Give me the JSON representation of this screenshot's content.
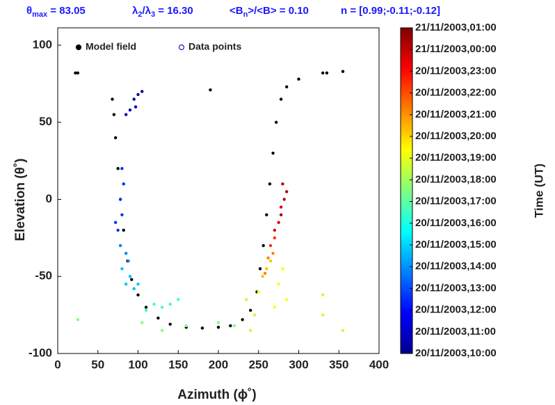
{
  "chart_data": {
    "type": "scatter",
    "annotations": [
      [
        "θ",
        "max",
        " = 83.05"
      ],
      [
        "λ",
        "2",
        "/λ",
        "3",
        " = 16.30"
      ],
      [
        "<B",
        "n",
        ">/<B> = 0.10"
      ],
      [
        "n = [0.99;-0.11;-0.12]"
      ]
    ],
    "xlabel": "Azimuth (ϕ˚)",
    "ylabel": "Elevation (θ˚)",
    "xlim": [
      0,
      400
    ],
    "ylim": [
      -100,
      100
    ],
    "xticks": [
      0,
      50,
      100,
      150,
      200,
      250,
      300,
      350,
      400
    ],
    "yticks": [
      -100,
      -50,
      0,
      50,
      100
    ],
    "legend": "upper left",
    "series": [
      {
        "name": "Model field",
        "color": "#000000",
        "x": [
          68,
          70,
          72,
          75,
          78,
          82,
          87,
          92,
          100,
          110,
          125,
          140,
          160,
          180,
          200,
          215,
          230,
          240,
          248,
          252,
          256,
          260,
          264,
          268,
          272,
          278,
          285,
          300,
          330,
          355,
          25,
          22,
          335,
          190
        ],
        "values": [
          65,
          55,
          40,
          20,
          0,
          -20,
          -40,
          -52,
          -62,
          -70,
          -77,
          -81,
          -83,
          -83.5,
          -83,
          -82,
          -78,
          -72,
          -60,
          -45,
          -30,
          -10,
          10,
          30,
          50,
          65,
          73,
          78,
          82,
          83,
          82,
          82,
          82,
          71
        ]
      },
      {
        "name": "Data points",
        "color": "#1a1ac8",
        "x": [
          95,
          100,
          105,
          90,
          85,
          97,
          80,
          82,
          78,
          80,
          75,
          72,
          78,
          85,
          88,
          80,
          85,
          90,
          95,
          100,
          120,
          130,
          140,
          150,
          110,
          105,
          130,
          160,
          200,
          220,
          25,
          235,
          245,
          240,
          355,
          330,
          330,
          250,
          275,
          280,
          285,
          270,
          255,
          260,
          265,
          262,
          268,
          258,
          265,
          270,
          275,
          278,
          270,
          280,
          282,
          285,
          278
        ],
        "values": [
          65,
          68,
          70,
          58,
          55,
          60,
          20,
          10,
          0,
          -10,
          -20,
          -15,
          -30,
          -35,
          -40,
          -45,
          -55,
          -50,
          -58,
          -55,
          -68,
          -70,
          -68,
          -65,
          -72,
          -80,
          -85,
          -82,
          -80,
          -82,
          -78,
          -65,
          -75,
          -85,
          -85,
          -62,
          -75,
          -60,
          -55,
          -45,
          -65,
          -70,
          -50,
          -45,
          -40,
          -38,
          -35,
          -48,
          -30,
          -25,
          -15,
          -5,
          -20,
          10,
          0,
          5,
          -10
        ],
        "colors": [
          "#0000a0",
          "#0000a0",
          "#0000a0",
          "#0000c8",
          "#0000c8",
          "#0000c8",
          "#0030ff",
          "#0030ff",
          "#0030ff",
          "#0030ff",
          "#0030ff",
          "#0030ff",
          "#0080ff",
          "#0080ff",
          "#0080ff",
          "#00c0ff",
          "#00c0ff",
          "#00c0ff",
          "#00c0ff",
          "#00c0ff",
          "#40ffd0",
          "#40ffd0",
          "#40ffd0",
          "#40ffd0",
          "#40ffd0",
          "#80ff80",
          "#80ff80",
          "#80ff80",
          "#80ff80",
          "#80ff80",
          "#80ff80",
          "#c0ff40",
          "#c0ff40",
          "#c0ff40",
          "#c0ff40",
          "#c0ff40",
          "#c0ff40",
          "#ffff00",
          "#ffff00",
          "#ffff00",
          "#ffff00",
          "#ffff00",
          "#ffc000",
          "#ffc000",
          "#ffc000",
          "#ff8000",
          "#ff8000",
          "#ff8000",
          "#ff3000",
          "#ff3000",
          "#e00000",
          "#e00000",
          "#e00000",
          "#b00000",
          "#b00000",
          "#b00000",
          "#b00000"
        ]
      }
    ],
    "colorbar": {
      "label": "Time (UT)",
      "colors": [
        "#00008f",
        "#0000ff",
        "#0080ff",
        "#00ffff",
        "#80ff80",
        "#ffff00",
        "#ff8000",
        "#ff0000",
        "#800000"
      ],
      "ticks": [
        "21/11/2003,01:00",
        "21/11/2003,00:00",
        "20/11/2003,23:00",
        "20/11/2003,22:00",
        "20/11/2003,21:00",
        "20/11/2003,20:00",
        "20/11/2003,19:00",
        "20/11/2003,18:00",
        "20/11/2003,17:00",
        "20/11/2003,16:00",
        "20/11/2003,15:00",
        "20/11/2003,14:00",
        "20/11/2003,13:00",
        "20/11/2003,12:00",
        "20/11/2003,11:00",
        "20/11/2003,10:00"
      ]
    }
  }
}
